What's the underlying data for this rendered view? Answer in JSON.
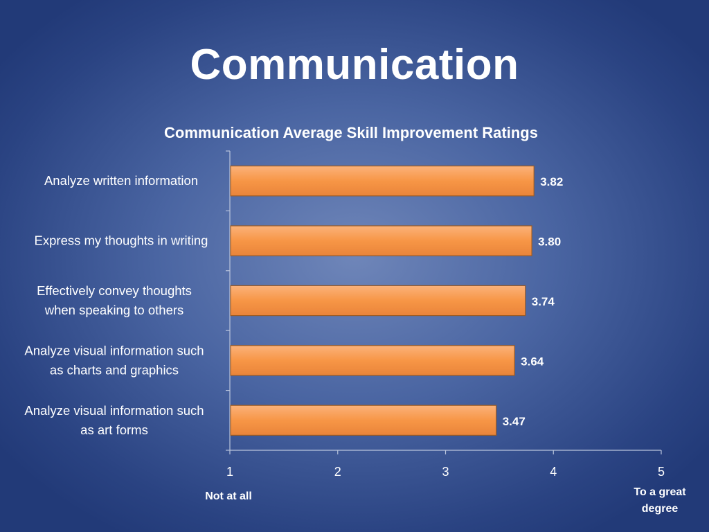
{
  "slide": {
    "title": "Communication"
  },
  "chart_data": {
    "type": "bar",
    "orientation": "horizontal",
    "title": "Communication Average Skill Improvement Ratings",
    "categories": [
      [
        "Analyze written information"
      ],
      [
        "Express my thoughts in writing"
      ],
      [
        "Effectively convey thoughts",
        "when speaking to others"
      ],
      [
        "Analyze visual information such",
        "as charts and graphics"
      ],
      [
        "Analyze visual information such",
        "as art forms"
      ]
    ],
    "values": [
      3.82,
      3.8,
      3.74,
      3.64,
      3.47
    ],
    "value_labels": [
      "3.82",
      "3.80",
      "3.74",
      "3.64",
      "3.47"
    ],
    "xlim": [
      1,
      5
    ],
    "xticks": [
      "1",
      "2",
      "3",
      "4",
      "5"
    ],
    "axis_end_labels": {
      "low": [
        "Not at all"
      ],
      "high": [
        "To a great",
        "degree"
      ]
    },
    "bar_color": "#f79646",
    "grid": false,
    "legend": "none"
  }
}
